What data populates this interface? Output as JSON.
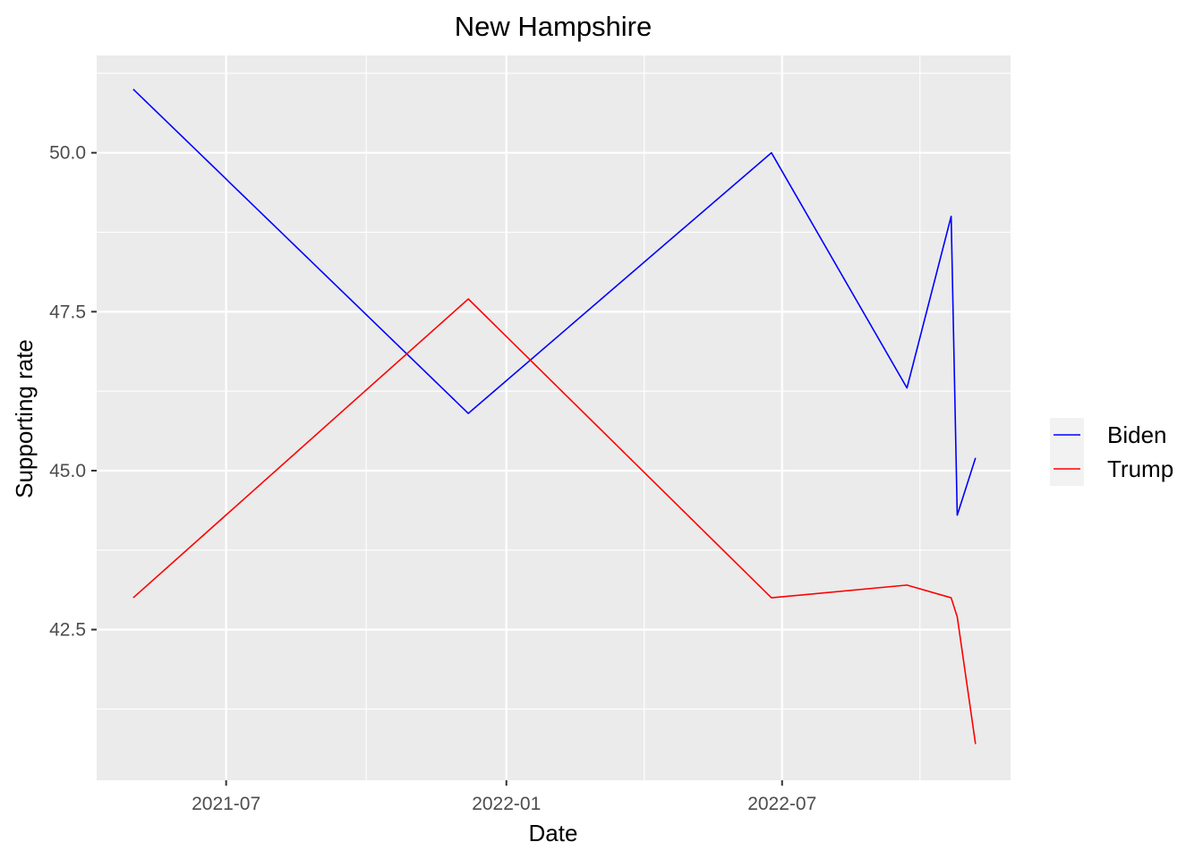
{
  "chart_data": {
    "type": "line",
    "title": "New Hampshire",
    "xlabel": "Date",
    "ylabel": "Supporting rate",
    "x_axis_type": "date",
    "xlim": [
      "2021-04-07",
      "2022-11-28"
    ],
    "ylim": [
      40.13,
      51.53
    ],
    "x_ticks": [
      {
        "value": "2021-07-01",
        "label": "2021-07"
      },
      {
        "value": "2022-01-01",
        "label": "2022-01"
      },
      {
        "value": "2022-07-01",
        "label": "2022-07"
      }
    ],
    "y_ticks": [
      {
        "value": 42.5,
        "label": "42.5"
      },
      {
        "value": 45.0,
        "label": "45.0"
      },
      {
        "value": 47.5,
        "label": "47.5"
      },
      {
        "value": 50.0,
        "label": "50.0"
      }
    ],
    "grid": true,
    "panel_background": "#EBEBEB",
    "grid_color": "#FFFFFF",
    "legend": {
      "position": "right",
      "title": ""
    },
    "series": [
      {
        "name": "Biden",
        "color": "#0000FF",
        "points": [
          {
            "x": "2021-05-01",
            "y": 51.0
          },
          {
            "x": "2021-12-07",
            "y": 45.9
          },
          {
            "x": "2022-06-24",
            "y": 50.0
          },
          {
            "x": "2022-09-21",
            "y": 46.3
          },
          {
            "x": "2022-10-20",
            "y": 49.0
          },
          {
            "x": "2022-10-24",
            "y": 44.3
          },
          {
            "x": "2022-11-05",
            "y": 45.2
          }
        ]
      },
      {
        "name": "Trump",
        "color": "#FF0000",
        "points": [
          {
            "x": "2021-05-01",
            "y": 43.0
          },
          {
            "x": "2021-12-07",
            "y": 47.7
          },
          {
            "x": "2022-06-24",
            "y": 43.0
          },
          {
            "x": "2022-09-21",
            "y": 43.2
          },
          {
            "x": "2022-10-20",
            "y": 43.0
          },
          {
            "x": "2022-10-24",
            "y": 42.7
          },
          {
            "x": "2022-11-05",
            "y": 40.7
          }
        ]
      }
    ]
  }
}
